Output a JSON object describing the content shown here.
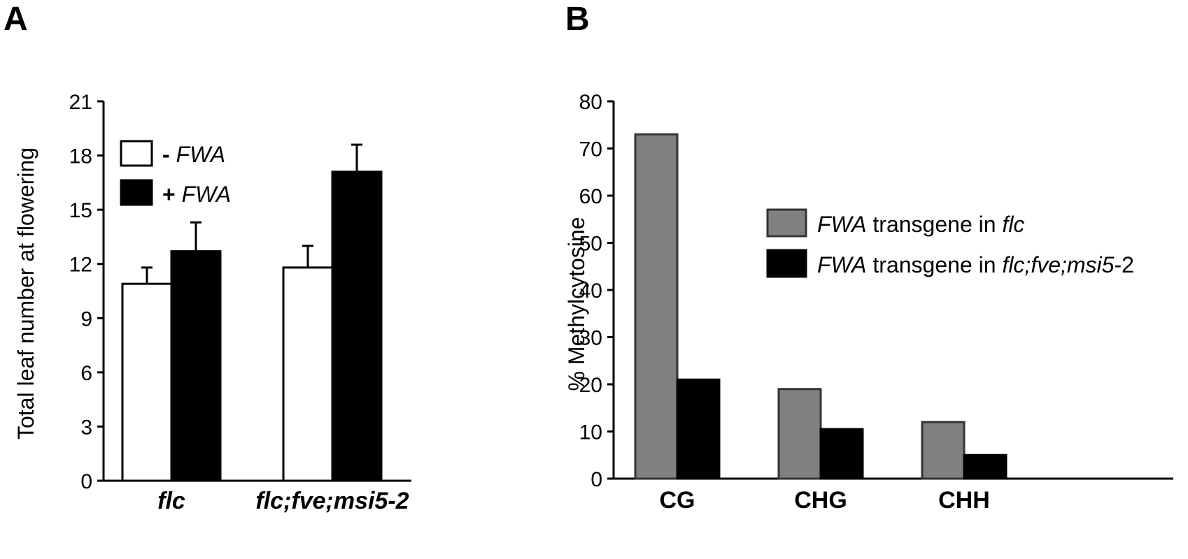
{
  "chart_data": [
    {
      "type": "bar",
      "panel": "A",
      "ylabel": "Total leaf number at flowering",
      "ylim": [
        0,
        21
      ],
      "yticks": [
        0,
        3,
        6,
        9,
        12,
        15,
        18,
        21
      ],
      "categories": [
        "flc",
        "flc;fve;msi5-2"
      ],
      "series": [
        {
          "name": "- FWA",
          "legend_sign": "-",
          "legend_gene": "FWA",
          "color": "#ffffff",
          "values": [
            10.9,
            11.8
          ],
          "errors": [
            0.9,
            1.2
          ]
        },
        {
          "name": "+ FWA",
          "legend_sign": "+",
          "legend_gene": "FWA",
          "color": "#000000",
          "values": [
            12.7,
            17.1
          ],
          "errors": [
            1.6,
            1.5
          ]
        }
      ],
      "legend_position": "top-left",
      "grid": false
    },
    {
      "type": "bar",
      "panel": "B",
      "ylabel": "% Methylcytosine",
      "ylim": [
        0,
        80
      ],
      "yticks": [
        0,
        10,
        20,
        30,
        40,
        50,
        60,
        70,
        80
      ],
      "categories": [
        "CG",
        "CHG",
        "CHH"
      ],
      "series": [
        {
          "name": "FWA transgene in flc",
          "legend_gene": "FWA",
          "legend_rest": " transgene in ",
          "legend_bg": "flc",
          "color": "#808080",
          "values": [
            73,
            19,
            12
          ]
        },
        {
          "name": "FWA transgene in flc;fve;msi5-2",
          "legend_gene": "FWA",
          "legend_rest": " transgene in ",
          "legend_bg": "flc;fve;msi5",
          "legend_suffix": "-2",
          "color": "#000000",
          "values": [
            21,
            10.5,
            5
          ]
        }
      ],
      "legend_position": "center-right",
      "grid": false
    }
  ]
}
